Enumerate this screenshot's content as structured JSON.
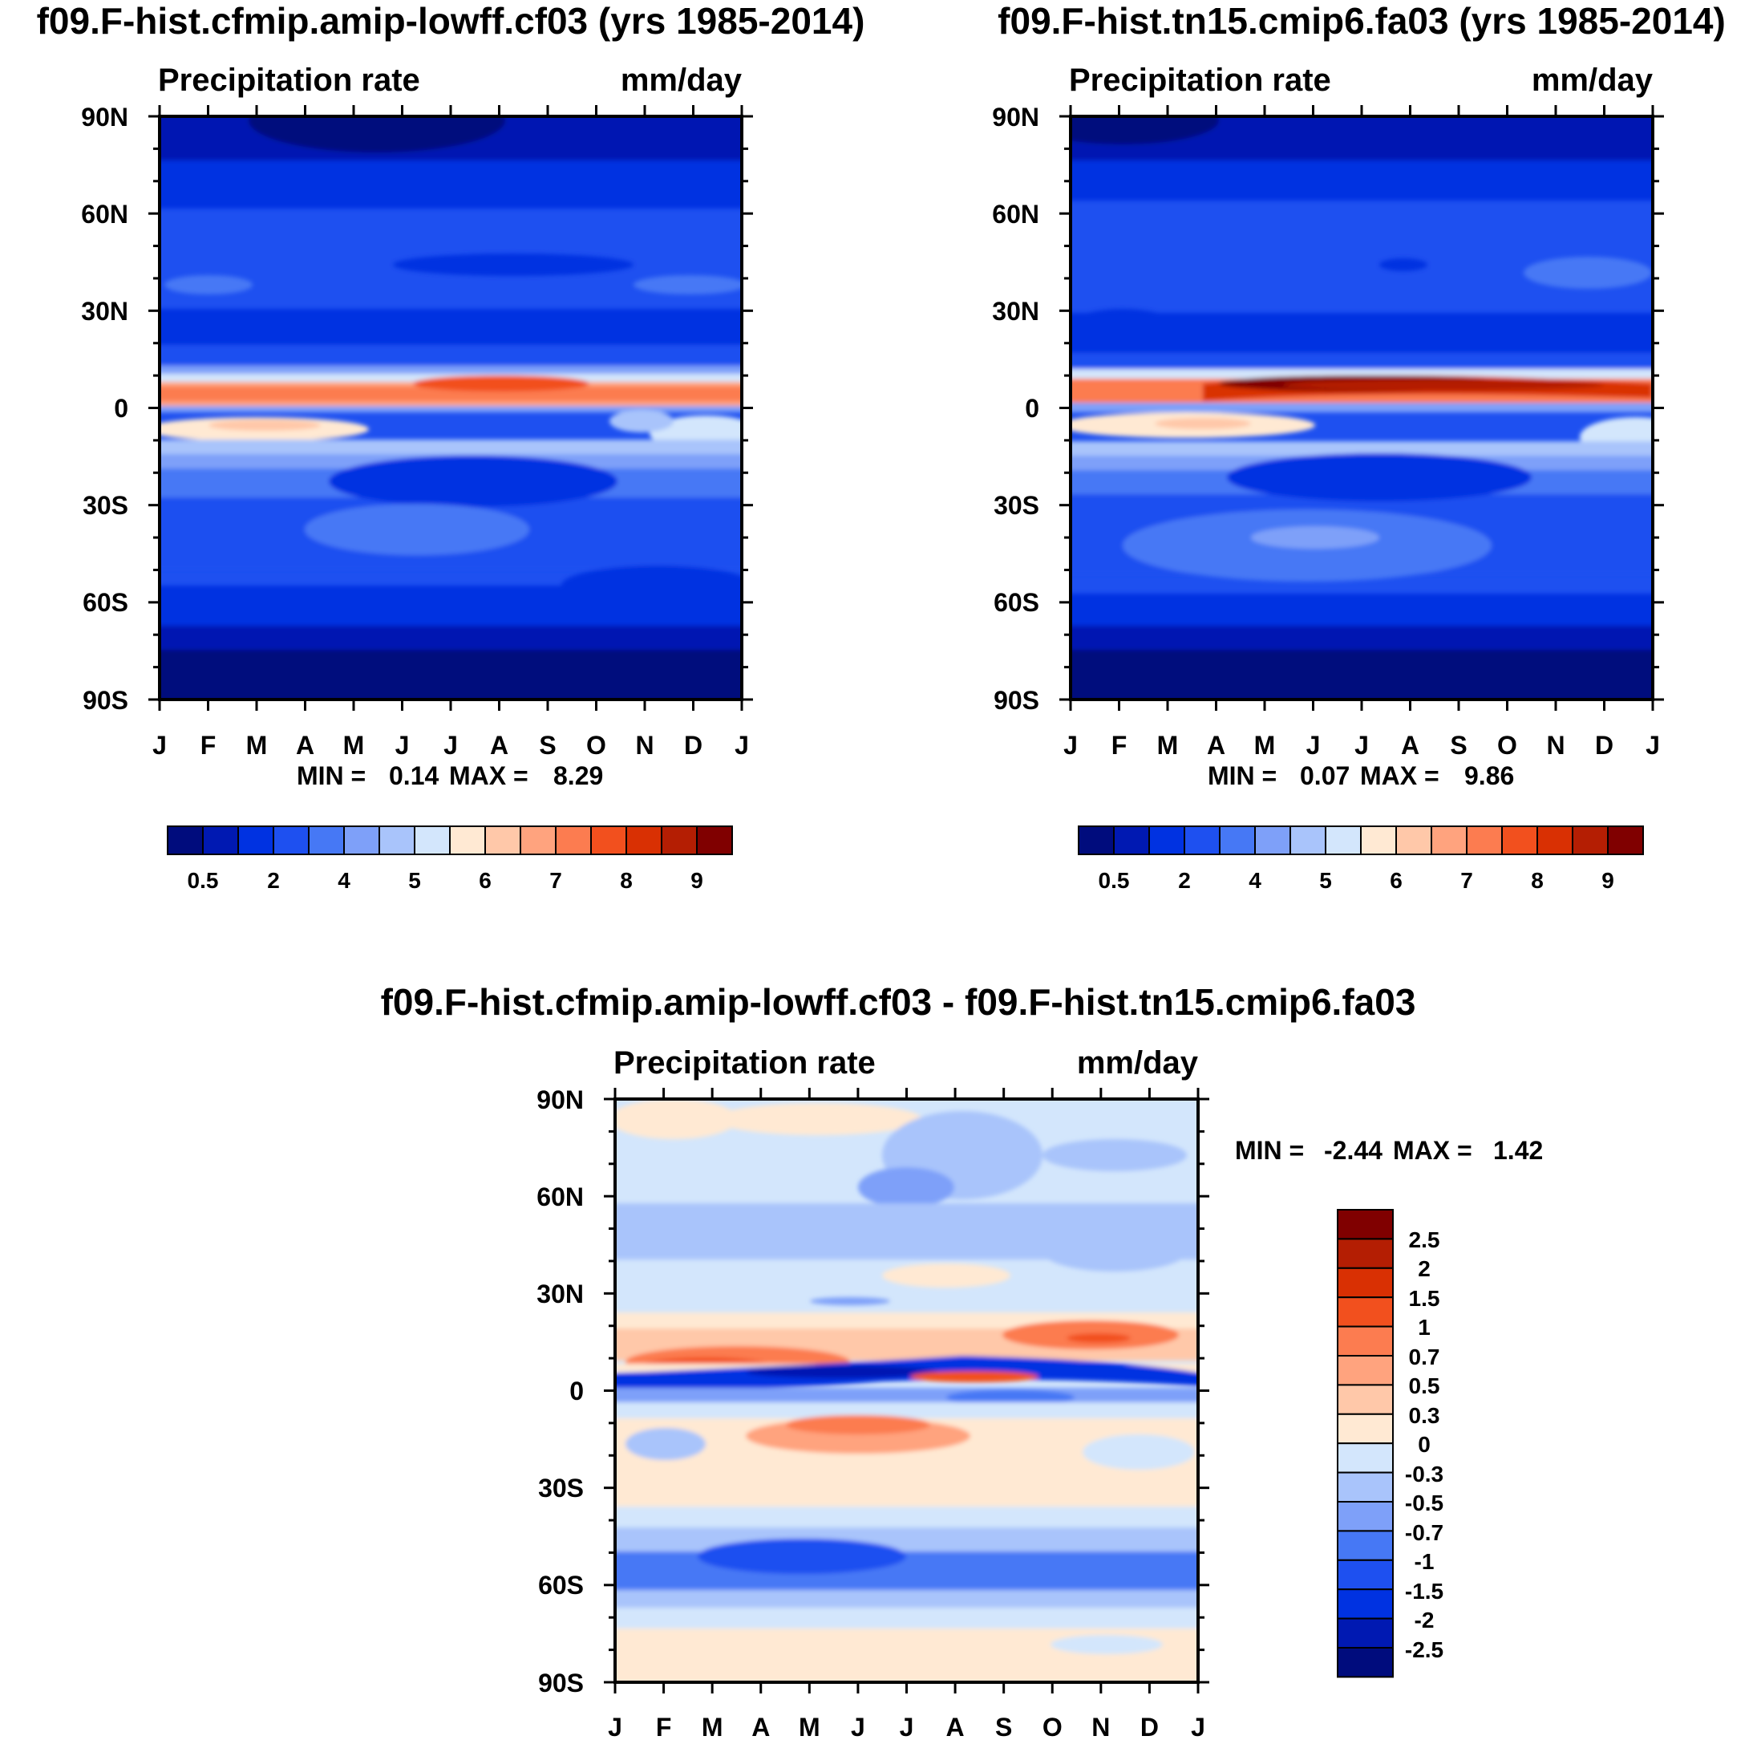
{
  "chart_data": [
    {
      "type": "heatmap",
      "title": "f09.F-hist.cfmip.amip-lowff.cf03 (yrs 1985-2014)",
      "left_label": "Precipitation rate",
      "right_label": "mm/day",
      "xticks": [
        "J",
        "F",
        "M",
        "A",
        "M",
        "J",
        "J",
        "A",
        "S",
        "O",
        "N",
        "D",
        "J"
      ],
      "yticks": [
        "90N",
        "60N",
        "30N",
        "0",
        "30S",
        "60S",
        "90S"
      ],
      "min_label": "MIN =",
      "min_value": "0.14",
      "max_label": "MAX =",
      "max_value": "8.29",
      "itcz_peak": 8.29,
      "colorbar_labels": [
        "0.5",
        "2",
        "4",
        "5",
        "6",
        "7",
        "8",
        "9"
      ]
    },
    {
      "type": "heatmap",
      "title": "f09.F-hist.tn15.cmip6.fa03 (yrs 1985-2014)",
      "left_label": "Precipitation rate",
      "right_label": "mm/day",
      "xticks": [
        "J",
        "F",
        "M",
        "A",
        "M",
        "J",
        "J",
        "A",
        "S",
        "O",
        "N",
        "D",
        "J"
      ],
      "yticks": [
        "90N",
        "60N",
        "30N",
        "0",
        "30S",
        "60S",
        "90S"
      ],
      "min_label": "MIN =",
      "min_value": "0.07",
      "max_label": "MAX =",
      "max_value": "9.86",
      "itcz_peak": 9.86,
      "colorbar_labels": [
        "0.5",
        "2",
        "4",
        "5",
        "6",
        "7",
        "8",
        "9"
      ]
    },
    {
      "type": "heatmap",
      "title": "f09.F-hist.cfmip.amip-lowff.cf03 - f09.F-hist.tn15.cmip6.fa03",
      "left_label": "Precipitation rate",
      "right_label": "mm/day",
      "xticks": [
        "J",
        "F",
        "M",
        "A",
        "M",
        "J",
        "J",
        "A",
        "S",
        "O",
        "N",
        "D",
        "J"
      ],
      "yticks": [
        "90N",
        "60N",
        "30N",
        "0",
        "30S",
        "60S",
        "90S"
      ],
      "min_label": "MIN =",
      "min_value": "-2.44",
      "max_label": "MAX =",
      "max_value": "1.42",
      "colorbar_labels": [
        "2.5",
        "2",
        "1.5",
        "1",
        "0.7",
        "0.5",
        "0.3",
        "0",
        "-0.3",
        "-0.5",
        "-0.7",
        "-1",
        "-1.5",
        "-2",
        "-2.5"
      ]
    }
  ],
  "colors": {
    "precip_scale": [
      "#000c7d",
      "#0019b2",
      "#0032e1",
      "#1e50f0",
      "#4678f5",
      "#7ea0f9",
      "#a9c4fb",
      "#d3e6fc",
      "#ffe9d3",
      "#ffc8a9",
      "#ffa37e",
      "#fc7c50",
      "#f2501e",
      "#d93003",
      "#b41e03",
      "#800000"
    ],
    "diff_scale": [
      "#800000",
      "#b41e03",
      "#d93003",
      "#f2501e",
      "#fc7c50",
      "#ffa37e",
      "#ffc8a9",
      "#ffe9d3",
      "#d3e6fc",
      "#a9c4fb",
      "#7ea0f9",
      "#4678f5",
      "#1e50f0",
      "#0032e1",
      "#0019b2",
      "#000c7d"
    ]
  }
}
